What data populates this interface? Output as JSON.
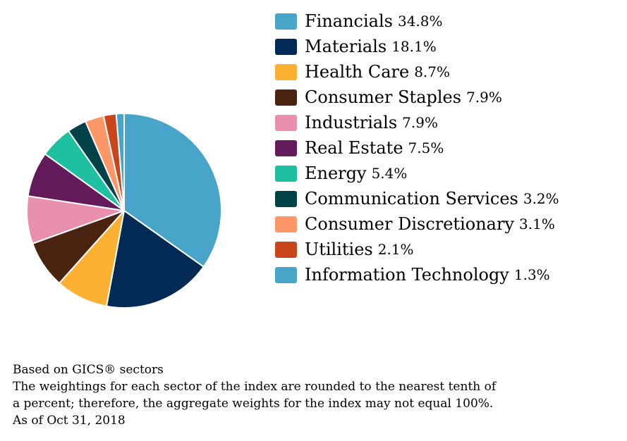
{
  "chart_data": {
    "type": "pie",
    "categories": [
      "Financials",
      "Materials",
      "Health Care",
      "Consumer Staples",
      "Industrials",
      "Real Estate",
      "Energy",
      "Communication Services",
      "Consumer Discretionary",
      "Utilities",
      "Information Technology"
    ],
    "values": [
      34.8,
      18.1,
      8.7,
      7.9,
      7.9,
      7.5,
      5.4,
      3.2,
      3.1,
      2.1,
      1.3
    ],
    "value_labels": [
      "34.8%",
      "18.1%",
      "8.7%",
      "7.9%",
      "7.9%",
      "7.5%",
      "5.4%",
      "3.2%",
      "3.1%",
      "2.1%",
      "1.3%"
    ],
    "colors": [
      "#48a4c9",
      "#022a55",
      "#fdb133",
      "#4b2411",
      "#e890ae",
      "#641b5c",
      "#1fbfa1",
      "#014148",
      "#fe9768",
      "#c9451b",
      "#48a4c9"
    ],
    "start_angle": "12 o'clock",
    "direction": "clockwise",
    "legend_position": "right"
  },
  "notes": [
    "Based on GICS® sectors",
    "The weightings for each sector of the index are rounded to the nearest tenth of",
    "a percent; therefore, the aggregate weights for the index may not equal 100%.",
    "As of Oct 31, 2018"
  ]
}
